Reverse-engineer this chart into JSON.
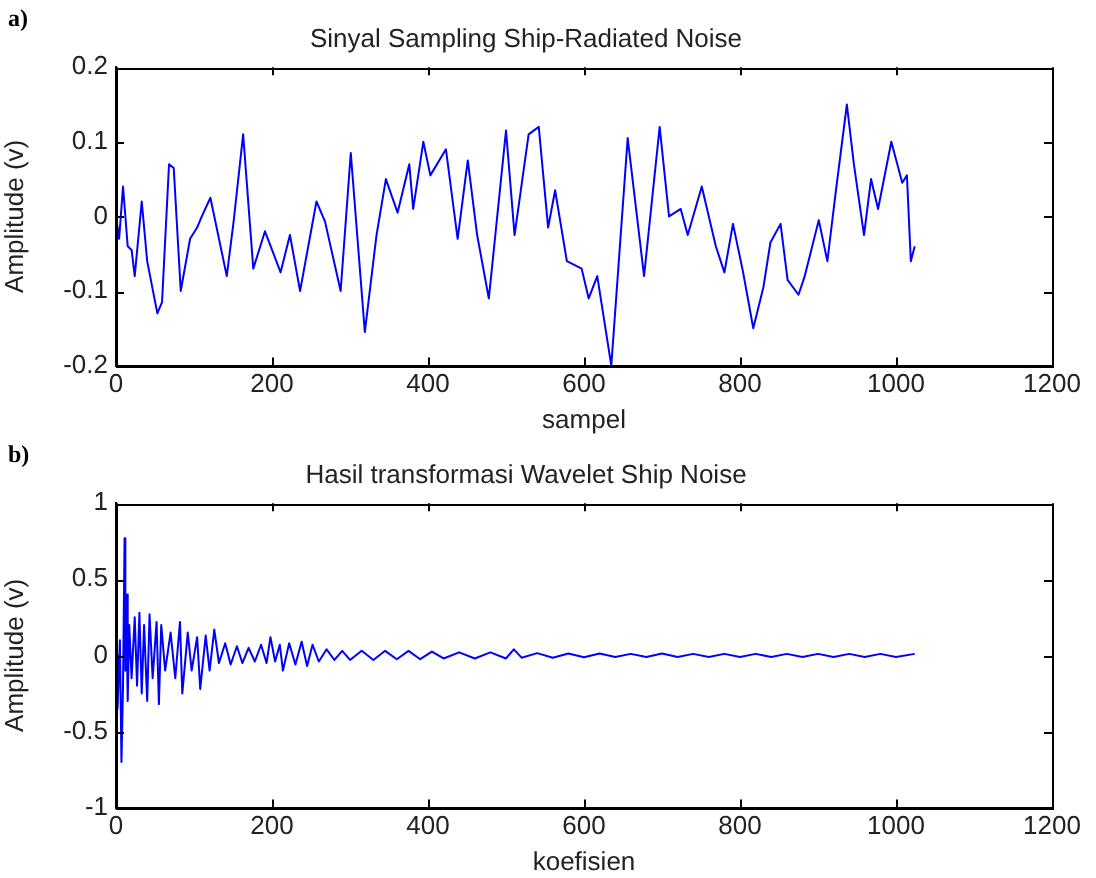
{
  "chart_data": [
    {
      "type": "line",
      "title": "Sinyal Sampling Ship-Radiated Noise",
      "xlabel": "sampel",
      "ylabel": "Amplitude (v)",
      "annotations": [
        "a)"
      ],
      "xlim": [
        0,
        1200
      ],
      "xticks": [
        0,
        200,
        400,
        600,
        800,
        1000,
        1200
      ],
      "ylim": [
        -0.2,
        0.2
      ],
      "yticks": [
        -0.2,
        -0.1,
        0,
        0.1,
        0.2
      ],
      "grid": false,
      "marker": "none",
      "series": [
        {
          "color": "#0000ff",
          "x": [
            0,
            4,
            9,
            15,
            20,
            24,
            33,
            40,
            53,
            59,
            68,
            74,
            83,
            95,
            104,
            110,
            121,
            130,
            142,
            151,
            163,
            176,
            191,
            211,
            223,
            236,
            257,
            268,
            288,
            301,
            319,
            334,
            346,
            361,
            376,
            381,
            394,
            403,
            423,
            438,
            451,
            463,
            478,
            500,
            511,
            529,
            542,
            554,
            563,
            578,
            597,
            606,
            617,
            635,
            656,
            677,
            697,
            709,
            724,
            733,
            751,
            769,
            780,
            791,
            804,
            817,
            830,
            839,
            852,
            861,
            875,
            883,
            901,
            912,
            923,
            937,
            946,
            959,
            968,
            977,
            994,
            1008,
            1014,
            1019,
            1024
          ],
          "values": [
            0,
            -0.03,
            0.04,
            -0.04,
            -0.045,
            -0.08,
            0.02,
            -0.06,
            -0.13,
            -0.115,
            0.07,
            0.065,
            -0.1,
            -0.03,
            -0.015,
            0,
            0.025,
            -0.02,
            -0.08,
            -0.005,
            0.11,
            -0.07,
            -0.02,
            -0.075,
            -0.025,
            -0.1,
            0.02,
            -0.007,
            -0.1,
            0.085,
            -0.155,
            -0.025,
            0.05,
            0.005,
            0.07,
            0.01,
            0.1,
            0.055,
            0.09,
            -0.03,
            0.075,
            -0.025,
            -0.11,
            0.115,
            -0.025,
            0.11,
            0.12,
            -0.015,
            0.035,
            -0.06,
            -0.07,
            -0.11,
            -0.08,
            -0.2,
            0.105,
            -0.08,
            0.12,
            0,
            0.01,
            -0.025,
            0.04,
            -0.04,
            -0.075,
            -0.01,
            -0.075,
            -0.15,
            -0.095,
            -0.035,
            -0.01,
            -0.085,
            -0.105,
            -0.08,
            -0.005,
            -0.06,
            0.035,
            0.15,
            0.07,
            -0.025,
            0.05,
            0.01,
            0.1,
            0.045,
            0.055,
            -0.06,
            -0.04
          ]
        }
      ]
    },
    {
      "type": "line",
      "title": "Hasil transformasi Wavelet Ship Noise",
      "xlabel": "koefisien",
      "ylabel": "Amplitude (v)",
      "annotations": [
        "b)"
      ],
      "xlim": [
        0,
        1200
      ],
      "xticks": [
        0,
        200,
        400,
        600,
        800,
        1000,
        1200
      ],
      "ylim": [
        -1,
        1
      ],
      "yticks": [
        -1,
        -0.5,
        0,
        0.5,
        1
      ],
      "grid": false,
      "marker": "none",
      "series": [
        {
          "color": "#0000ff",
          "x": [
            0,
            2,
            5,
            7,
            9,
            11,
            12,
            13,
            15,
            17,
            20,
            24,
            27,
            30,
            33,
            36,
            40,
            43,
            47,
            52,
            55,
            58,
            63,
            70,
            76,
            82,
            85,
            92,
            97,
            104,
            108,
            115,
            120,
            126,
            132,
            140,
            147,
            155,
            162,
            170,
            178,
            186,
            193,
            198,
            204,
            210,
            214,
            222,
            230,
            238,
            245,
            252,
            260,
            270,
            280,
            290,
            300,
            315,
            330,
            345,
            360,
            375,
            390,
            405,
            420,
            440,
            460,
            480,
            500,
            510,
            520,
            540,
            560,
            580,
            600,
            620,
            640,
            660,
            680,
            700,
            720,
            740,
            760,
            780,
            800,
            820,
            840,
            860,
            880,
            900,
            920,
            940,
            960,
            980,
            1000,
            1024
          ],
          "values": [
            0,
            -0.35,
            0.1,
            -0.7,
            -0.2,
            0.77,
            -0.1,
            0.4,
            -0.3,
            0.2,
            -0.15,
            0.25,
            -0.2,
            0.28,
            -0.25,
            0.2,
            -0.3,
            0.27,
            -0.15,
            0.22,
            -0.32,
            0.2,
            -0.1,
            0.15,
            -0.15,
            0.22,
            -0.25,
            0.15,
            -0.1,
            0.12,
            -0.22,
            0.13,
            -0.1,
            0.17,
            -0.05,
            0.08,
            -0.06,
            0.06,
            -0.05,
            0.05,
            -0.04,
            0.07,
            -0.05,
            0.12,
            -0.04,
            0.07,
            -0.1,
            0.08,
            -0.06,
            0.09,
            -0.07,
            0.07,
            -0.04,
            0.04,
            -0.03,
            0.03,
            -0.03,
            0.03,
            -0.03,
            0.03,
            -0.025,
            0.03,
            -0.025,
            0.025,
            -0.02,
            0.02,
            -0.02,
            0.02,
            -0.02,
            0.04,
            -0.015,
            0.015,
            -0.015,
            0.012,
            -0.012,
            0.012,
            -0.01,
            0.01,
            -0.01,
            0.012,
            -0.01,
            0.01,
            -0.01,
            0.01,
            -0.01,
            0.01,
            -0.01,
            0.01,
            -0.01,
            0.01,
            -0.01,
            0.01,
            -0.01,
            0.01,
            -0.01,
            0.01
          ]
        }
      ]
    }
  ]
}
